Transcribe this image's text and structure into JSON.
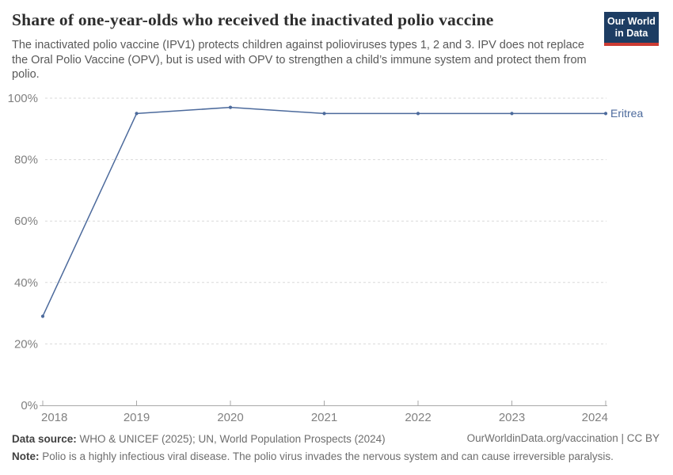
{
  "chart_data": {
    "type": "line",
    "title": "Share of one-year-olds who received the inactivated polio vaccine",
    "subtitle": "The inactivated polio vaccine (IPV1) protects children against polioviruses types 1, 2 and 3. IPV does not replace the Oral Polio Vaccine (OPV), but is used with OPV to strengthen a child’s immune system and protect them from polio.",
    "x": [
      2018,
      2019,
      2020,
      2021,
      2022,
      2023,
      2024
    ],
    "series": [
      {
        "name": "Eritrea",
        "values": [
          29,
          95,
          97,
          95,
          95,
          95,
          95
        ]
      }
    ],
    "end_label": "Eritrea",
    "xlabel": "",
    "ylabel": "",
    "ylim": [
      0,
      100
    ],
    "yticks": [
      0,
      20,
      40,
      60,
      80,
      100
    ],
    "ytick_suffix": "%",
    "grid": "horizontal-dashed",
    "legend_position": "line-end-label"
  },
  "logo": {
    "line1": "Our World",
    "line2": "in Data"
  },
  "footer": {
    "datasource_label": "Data source:",
    "datasource_text": " WHO & UNICEF (2025); UN, World Population Prospects (2024)",
    "note_label": "Note:",
    "note_text": " Polio is a highly infectious viral disease. The polio virus invades the nervous system and can cause irreversible paralysis.",
    "link": "OurWorldinData.org/vaccination | CC BY"
  },
  "colors": {
    "line": "#4c6a9c",
    "series_label": "#4c6a9c",
    "grid": "#d9d9d9",
    "axis": "#a8a8a8",
    "tick_text": "#818181",
    "title_text": "#2d2d2d",
    "subtitle_text": "#595959",
    "logo_bg": "#1d3d63",
    "logo_stripe": "#cc3b33"
  }
}
